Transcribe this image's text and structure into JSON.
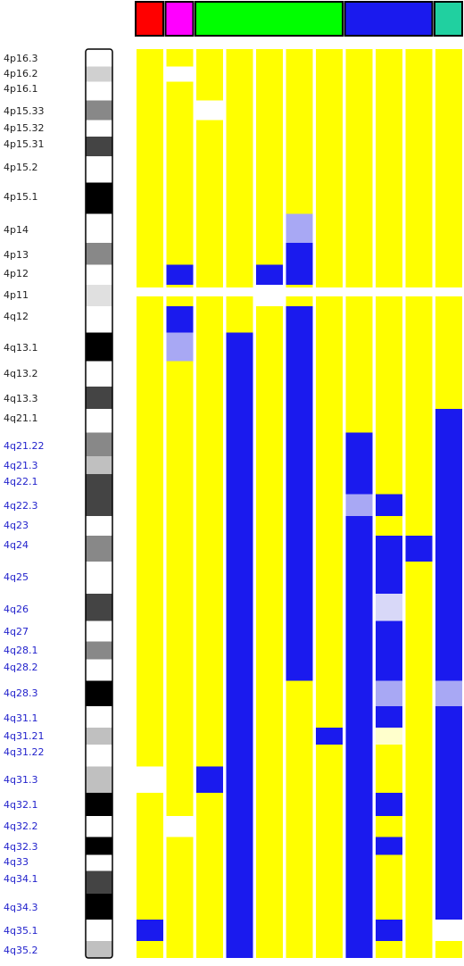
{
  "chart_data": {
    "type": "heatmap",
    "background": "#ffff00",
    "groups": [
      {
        "color": "#ff0000",
        "columns": 1
      },
      {
        "color": "#ff00ff",
        "columns": 1
      },
      {
        "color": "#00ff00",
        "columns": 5
      },
      {
        "color": "#1a1aee",
        "columns": 3
      },
      {
        "color": "#20d0a0",
        "columns": 1
      }
    ],
    "bands": [
      {
        "label": "4p16.3",
        "label_color": "#222222",
        "stain": "#ffffff"
      },
      {
        "label": "4p16.2",
        "label_color": "#222222",
        "stain": "#d0d0d0"
      },
      {
        "label": "4p16.1",
        "label_color": "#222222",
        "stain": "#ffffff"
      },
      {
        "label": "4p15.33",
        "label_color": "#222222",
        "stain": "#888888"
      },
      {
        "label": "4p15.32",
        "label_color": "#222222",
        "stain": "#ffffff"
      },
      {
        "label": "4p15.31",
        "label_color": "#222222",
        "stain": "#444444"
      },
      {
        "label": "4p15.2",
        "label_color": "#222222",
        "stain": "#ffffff"
      },
      {
        "label": "4p15.1",
        "label_color": "#222222",
        "stain": "#000000"
      },
      {
        "label": "4p14",
        "label_color": "#222222",
        "stain": "#ffffff"
      },
      {
        "label": "4p13",
        "label_color": "#222222",
        "stain": "#888888"
      },
      {
        "label": "4p12",
        "label_color": "#222222",
        "stain": "#ffffff"
      },
      {
        "label": "4p11",
        "label_color": "#222222",
        "stain": "#e0e0e0"
      },
      {
        "label": "4q12",
        "label_color": "#222222",
        "stain": "#ffffff"
      },
      {
        "label": "4q13.1",
        "label_color": "#222222",
        "stain": "#000000"
      },
      {
        "label": "4q13.2",
        "label_color": "#222222",
        "stain": "#ffffff"
      },
      {
        "label": "4q13.3",
        "label_color": "#222222",
        "stain": "#444444"
      },
      {
        "label": "4q21.1",
        "label_color": "#222222",
        "stain": "#ffffff"
      },
      {
        "label": "4q21.22",
        "label_color": "#2222cc",
        "stain": "#888888"
      },
      {
        "label": "4q21.3",
        "label_color": "#2222cc",
        "stain": "#c0c0c0"
      },
      {
        "label": "4q22.1",
        "label_color": "#2222cc",
        "stain": "#444444"
      },
      {
        "label": "4q22.3",
        "label_color": "#2222cc",
        "stain": "#444444"
      },
      {
        "label": "4q23",
        "label_color": "#2222cc",
        "stain": "#ffffff"
      },
      {
        "label": "4q24",
        "label_color": "#2222cc",
        "stain": "#888888"
      },
      {
        "label": "4q25",
        "label_color": "#2222cc",
        "stain": "#ffffff"
      },
      {
        "label": "4q26",
        "label_color": "#2222cc",
        "stain": "#444444"
      },
      {
        "label": "4q27",
        "label_color": "#2222cc",
        "stain": "#ffffff"
      },
      {
        "label": "4q28.1",
        "label_color": "#2222cc",
        "stain": "#888888"
      },
      {
        "label": "4q28.2",
        "label_color": "#2222cc",
        "stain": "#ffffff"
      },
      {
        "label": "4q28.3",
        "label_color": "#2222cc",
        "stain": "#000000"
      },
      {
        "label": "4q31.1",
        "label_color": "#2222cc",
        "stain": "#ffffff"
      },
      {
        "label": "4q31.21",
        "label_color": "#2222cc",
        "stain": "#c0c0c0"
      },
      {
        "label": "4q31.22",
        "label_color": "#2222cc",
        "stain": "#ffffff"
      },
      {
        "label": "4q31.3",
        "label_color": "#2222cc",
        "stain": "#c0c0c0"
      },
      {
        "label": "4q32.1",
        "label_color": "#2222cc",
        "stain": "#000000"
      },
      {
        "label": "4q32.2",
        "label_color": "#2222cc",
        "stain": "#ffffff"
      },
      {
        "label": "4q32.3",
        "label_color": "#2222cc",
        "stain": "#000000"
      },
      {
        "label": "4q33",
        "label_color": "#2222cc",
        "stain": "#ffffff"
      },
      {
        "label": "4q34.1",
        "label_color": "#2222cc",
        "stain": "#444444"
      },
      {
        "label": "4q34.3",
        "label_color": "#2222cc",
        "stain": "#000000"
      },
      {
        "label": "4q35.1",
        "label_color": "#2222cc",
        "stain": "#ffffff"
      },
      {
        "label": "4q35.2",
        "label_color": "#2222cc",
        "stain": "#c0c0c0"
      }
    ],
    "columns": [
      {
        "segments": [
          {
            "from": 32,
            "to": 32,
            "color": "#ffffff"
          },
          {
            "from": 39,
            "to": 39,
            "color": "#1a1aee"
          }
        ]
      },
      {
        "segments": [
          {
            "from": 1,
            "to": 1,
            "color": "#ffffff"
          },
          {
            "from": 10,
            "to": 10,
            "color": "#1a1aee"
          },
          {
            "from": 12,
            "to": 12,
            "color": "#1a1aee"
          },
          {
            "from": 13,
            "to": 13,
            "color": "#a8a8f4"
          },
          {
            "from": 34,
            "to": 34,
            "color": "#ffffff"
          }
        ]
      },
      {
        "segments": [
          {
            "from": 3,
            "to": 3,
            "color": "#ffffff"
          },
          {
            "from": 32,
            "to": 32,
            "color": "#1a1aee"
          }
        ]
      },
      {
        "segments": [
          {
            "from": 13,
            "to": 40,
            "color": "#1a1aee"
          }
        ]
      },
      {
        "segments": [
          {
            "from": 10,
            "to": 10,
            "color": "#1a1aee"
          },
          {
            "from": 11,
            "to": 11,
            "color": "#ffffff"
          }
        ]
      },
      {
        "segments": [
          {
            "from": 8,
            "to": 8,
            "color": "#a8a8f4"
          },
          {
            "from": 9,
            "to": 10,
            "color": "#1a1aee"
          },
          {
            "from": 12,
            "to": 27,
            "color": "#1a1aee"
          }
        ]
      },
      {
        "segments": [
          {
            "from": 30,
            "to": 30,
            "color": "#1a1aee"
          }
        ]
      },
      {
        "segments": [
          {
            "from": 17,
            "to": 19,
            "color": "#1a1aee"
          },
          {
            "from": 20,
            "to": 20,
            "color": "#a8a8f4"
          },
          {
            "from": 21,
            "to": 40,
            "color": "#1a1aee"
          }
        ]
      },
      {
        "segments": [
          {
            "from": 20,
            "to": 20,
            "color": "#1a1aee"
          },
          {
            "from": 22,
            "to": 23,
            "color": "#1a1aee"
          },
          {
            "from": 24,
            "to": 24,
            "color": "#d8d8f8"
          },
          {
            "from": 25,
            "to": 27,
            "color": "#1a1aee"
          },
          {
            "from": 28,
            "to": 28,
            "color": "#a8a8f4"
          },
          {
            "from": 29,
            "to": 29,
            "color": "#1a1aee"
          },
          {
            "from": 30,
            "to": 30,
            "color": "#ffffcc"
          },
          {
            "from": 33,
            "to": 33,
            "color": "#1a1aee"
          },
          {
            "from": 35,
            "to": 35,
            "color": "#1a1aee"
          },
          {
            "from": 39,
            "to": 39,
            "color": "#1a1aee"
          }
        ]
      },
      {
        "segments": [
          {
            "from": 22,
            "to": 22,
            "color": "#1a1aee"
          }
        ]
      },
      {
        "segments": [
          {
            "from": 16,
            "to": 27,
            "color": "#1a1aee"
          },
          {
            "from": 28,
            "to": 28,
            "color": "#a8a8f4"
          },
          {
            "from": 29,
            "to": 38,
            "color": "#1a1aee"
          },
          {
            "from": 39,
            "to": 39,
            "color": "#ffffff"
          }
        ]
      }
    ]
  }
}
